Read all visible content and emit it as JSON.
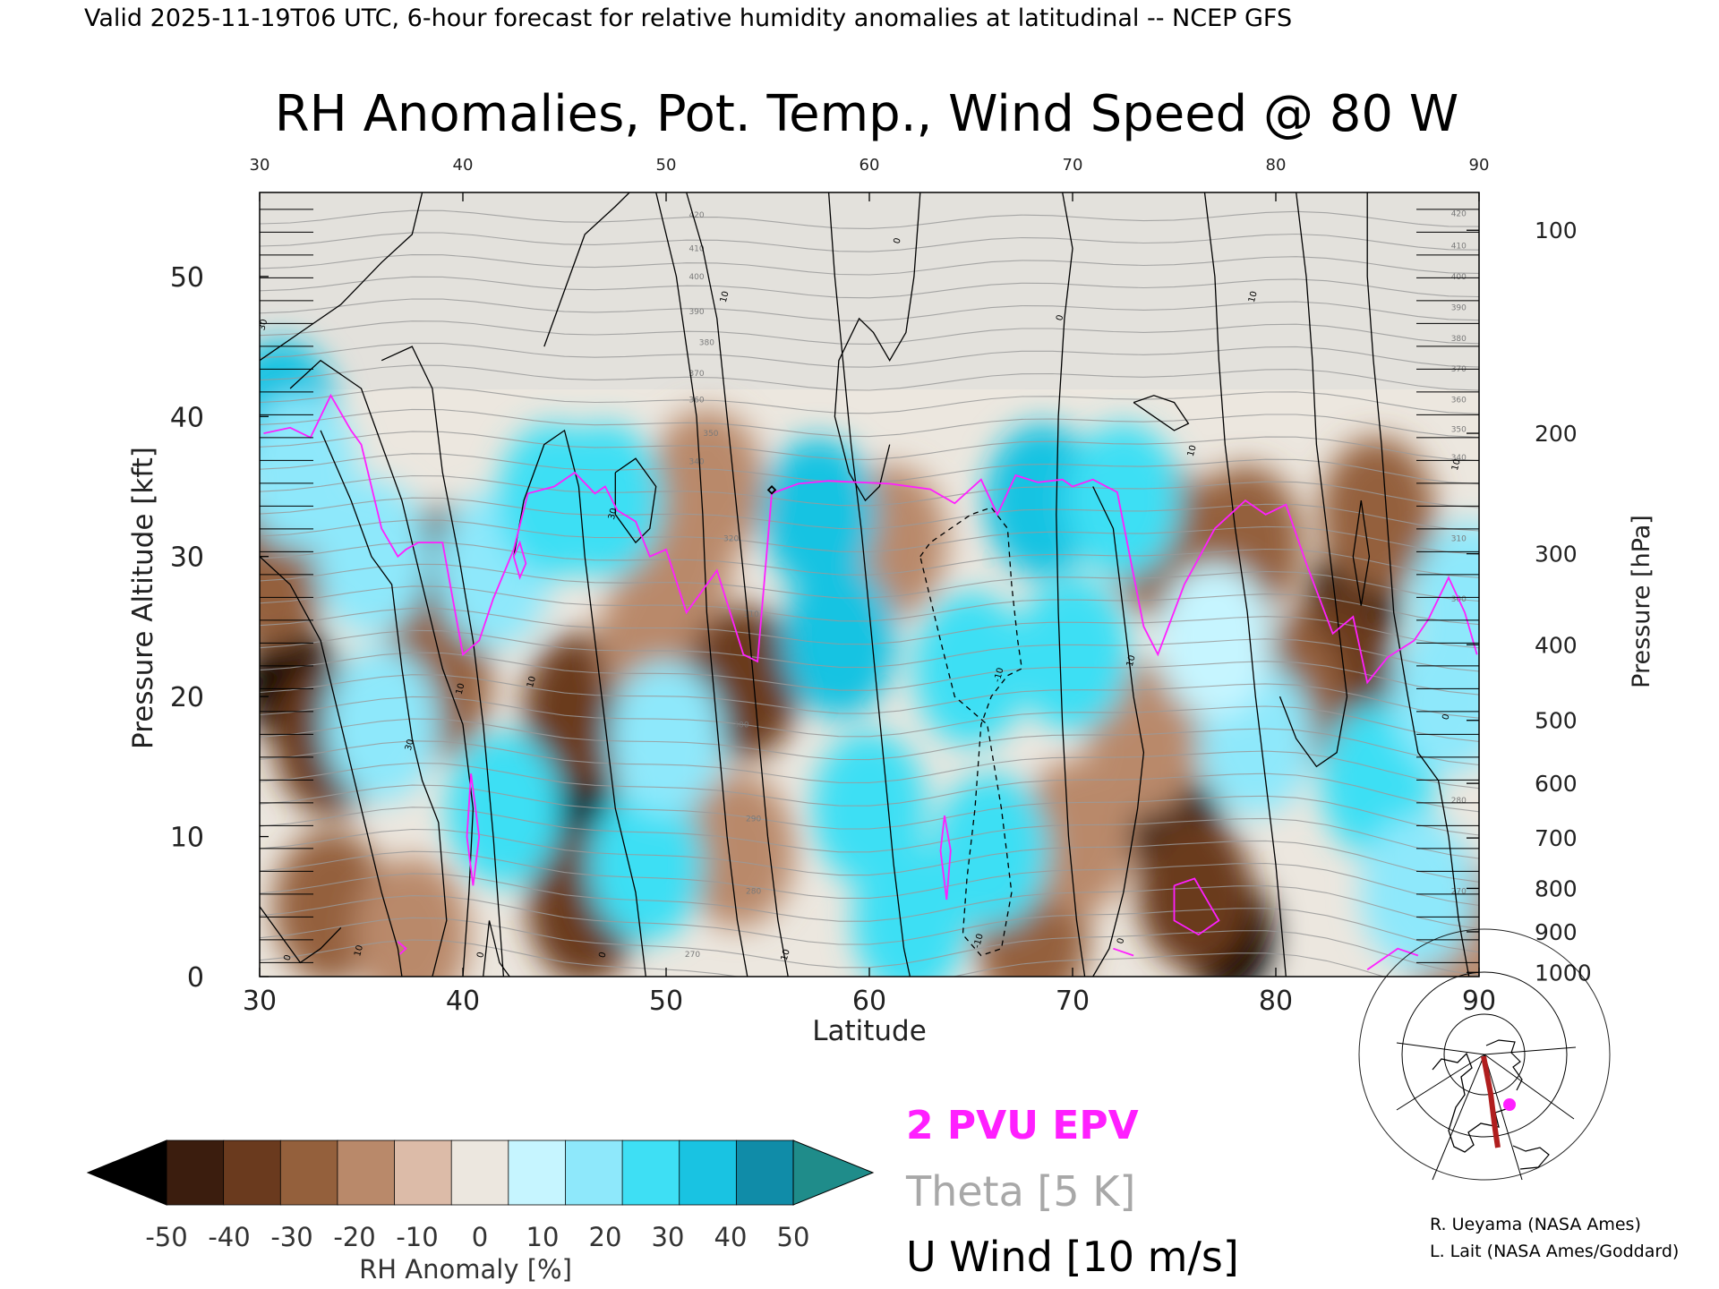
{
  "header": {
    "valid_line": "Valid 2025-11-19T06 UTC, 6-hour forecast for relative humidity anomalies at latitudinal -- NCEP GFS",
    "title": "RH Anomalies, Pot. Temp., Wind Speed @ 80 W"
  },
  "chart_data": {
    "type": "heatmap",
    "title": "RH Anomalies, Pot. Temp., Wind Speed @ 80 W",
    "xlabel": "Latitude",
    "ylabel_left": "Pressure Altitude [kft]",
    "ylabel_right": "Pressure [hPa]",
    "xlim": [
      30,
      90
    ],
    "ylim_kft": [
      0,
      56
    ],
    "x_ticks": [
      "30",
      "40",
      "50",
      "60",
      "70",
      "80",
      "90"
    ],
    "x_ticks_top": [
      "30",
      "40",
      "50",
      "60",
      "70",
      "80",
      "90"
    ],
    "y_ticks_left": [
      "0",
      "10",
      "20",
      "30",
      "40",
      "50"
    ],
    "y_ticks_right": [
      {
        "label": "100",
        "kft": 53.3
      },
      {
        "label": "200",
        "kft": 38.8
      },
      {
        "label": "300",
        "kft": 30.2
      },
      {
        "label": "400",
        "kft": 23.7
      },
      {
        "label": "500",
        "kft": 18.3
      },
      {
        "label": "600",
        "kft": 13.8
      },
      {
        "label": "700",
        "kft": 9.9
      },
      {
        "label": "800",
        "kft": 6.3
      },
      {
        "label": "900",
        "kft": 3.2
      },
      {
        "label": "1000",
        "kft": 0.3
      }
    ],
    "theta_labels": [
      {
        "label": "420",
        "lat": 51.5,
        "kft": 54.2
      },
      {
        "label": "410",
        "lat": 51.5,
        "kft": 51.8
      },
      {
        "label": "400",
        "lat": 51.5,
        "kft": 49.8
      },
      {
        "label": "390",
        "lat": 51.5,
        "kft": 47.3
      },
      {
        "label": "380",
        "lat": 52.0,
        "kft": 45.1
      },
      {
        "label": "370",
        "lat": 51.5,
        "kft": 42.9
      },
      {
        "label": "360",
        "lat": 51.5,
        "kft": 41.0
      },
      {
        "label": "350",
        "lat": 52.2,
        "kft": 38.6
      },
      {
        "label": "340",
        "lat": 51.5,
        "kft": 36.6
      },
      {
        "label": "320",
        "lat": 53.2,
        "kft": 31.1
      },
      {
        "label": "310",
        "lat": 54.2,
        "kft": 25.7
      },
      {
        "label": "300",
        "lat": 53.7,
        "kft": 17.8
      },
      {
        "label": "290",
        "lat": 54.3,
        "kft": 11.1
      },
      {
        "label": "280",
        "lat": 54.3,
        "kft": 5.9
      },
      {
        "label": "270",
        "lat": 51.3,
        "kft": 1.4
      },
      {
        "label": "420",
        "lat": 89.0,
        "kft": 54.3
      },
      {
        "label": "410",
        "lat": 89.0,
        "kft": 52.0
      },
      {
        "label": "400",
        "lat": 89.0,
        "kft": 49.8
      },
      {
        "label": "390",
        "lat": 89.0,
        "kft": 47.6
      },
      {
        "label": "380",
        "lat": 89.0,
        "kft": 45.4
      },
      {
        "label": "370",
        "lat": 89.0,
        "kft": 43.2
      },
      {
        "label": "360",
        "lat": 89.0,
        "kft": 41.0
      },
      {
        "label": "350",
        "lat": 89.0,
        "kft": 38.9
      },
      {
        "label": "340",
        "lat": 89.0,
        "kft": 36.9
      },
      {
        "label": "310",
        "lat": 89.0,
        "kft": 31.1
      },
      {
        "label": "300",
        "lat": 89.0,
        "kft": 26.8
      },
      {
        "label": "280",
        "lat": 89.0,
        "kft": 12.4
      },
      {
        "label": "270",
        "lat": 89.0,
        "kft": 5.9
      }
    ],
    "uwind_labels": [
      {
        "label": "0",
        "lat": 61.5,
        "kft": 52.5
      },
      {
        "label": "0",
        "lat": 69.5,
        "kft": 47.0
      },
      {
        "label": "10",
        "lat": 53.0,
        "kft": 48.5
      },
      {
        "label": "10",
        "lat": 79.0,
        "kft": 48.5
      },
      {
        "label": "30",
        "lat": 30.3,
        "kft": 46.5
      },
      {
        "label": "10",
        "lat": 76.0,
        "kft": 37.5
      },
      {
        "label": "10",
        "lat": 89.0,
        "kft": 36.5
      },
      {
        "label": "30",
        "lat": 47.5,
        "kft": 33.0
      },
      {
        "label": "-10",
        "lat": 66.5,
        "kft": 21.5
      },
      {
        "label": "10",
        "lat": 73.0,
        "kft": 22.5
      },
      {
        "label": "10",
        "lat": 40.0,
        "kft": 20.5
      },
      {
        "label": "10",
        "lat": 43.5,
        "kft": 21.0
      },
      {
        "label": "30",
        "lat": 37.5,
        "kft": 16.5
      },
      {
        "label": "10",
        "lat": 35.0,
        "kft": 1.8
      },
      {
        "label": "0",
        "lat": 31.5,
        "kft": 1.3
      },
      {
        "label": "0",
        "lat": 41.0,
        "kft": 1.5
      },
      {
        "label": "0",
        "lat": 47.0,
        "kft": 1.5
      },
      {
        "label": "10",
        "lat": 56.0,
        "kft": 1.5
      },
      {
        "label": "-10",
        "lat": 65.5,
        "kft": 2.5
      },
      {
        "label": "0",
        "lat": 72.5,
        "kft": 2.5
      },
      {
        "label": "0",
        "lat": 88.5,
        "kft": 18.5
      }
    ],
    "rh_anomaly_blobs": [
      {
        "lat": 31.5,
        "kft": 21,
        "value": -55
      },
      {
        "lat": 33.5,
        "kft": 17,
        "value": -35
      },
      {
        "lat": 30.5,
        "kft": 29,
        "value": -25
      },
      {
        "lat": 33.5,
        "kft": 5,
        "value": -30
      },
      {
        "lat": 37.5,
        "kft": 3,
        "value": -20
      },
      {
        "lat": 39,
        "kft": 28,
        "value": -35
      },
      {
        "lat": 38.6,
        "kft": 21,
        "value": -30
      },
      {
        "lat": 45.3,
        "kft": 12,
        "value": -55
      },
      {
        "lat": 45.8,
        "kft": 19,
        "value": -35
      },
      {
        "lat": 46,
        "kft": 5,
        "value": -40
      },
      {
        "lat": 49.5,
        "kft": 24,
        "value": -20
      },
      {
        "lat": 50.5,
        "kft": 30,
        "value": -15
      },
      {
        "lat": 53.8,
        "kft": 21,
        "value": -40
      },
      {
        "lat": 53.5,
        "kft": 9,
        "value": -20
      },
      {
        "lat": 52,
        "kft": 35,
        "value": -15
      },
      {
        "lat": 61,
        "kft": 31,
        "value": -15
      },
      {
        "lat": 68,
        "kft": 3,
        "value": -25
      },
      {
        "lat": 70.2,
        "kft": 10,
        "value": -20
      },
      {
        "lat": 75.2,
        "kft": 10,
        "value": -55
      },
      {
        "lat": 77.6,
        "kft": 3,
        "value": -55
      },
      {
        "lat": 76,
        "kft": 6,
        "value": -40
      },
      {
        "lat": 74.5,
        "kft": 31,
        "value": -30
      },
      {
        "lat": 73.5,
        "kft": 17,
        "value": -20
      },
      {
        "lat": 78.5,
        "kft": 31,
        "value": -25
      },
      {
        "lat": 83.8,
        "kft": 26.5,
        "value": -55
      },
      {
        "lat": 83,
        "kft": 22,
        "value": -35
      },
      {
        "lat": 80.5,
        "kft": 20,
        "value": -25
      },
      {
        "lat": 89,
        "kft": 3,
        "value": -20
      },
      {
        "lat": 85,
        "kft": 33,
        "value": -25
      },
      {
        "lat": 31,
        "kft": 40,
        "value": 45
      },
      {
        "lat": 32,
        "kft": 36,
        "value": 25
      },
      {
        "lat": 35.5,
        "kft": 30,
        "value": 20
      },
      {
        "lat": 36,
        "kft": 18,
        "value": 25
      },
      {
        "lat": 41.5,
        "kft": 29,
        "value": 25
      },
      {
        "lat": 42,
        "kft": 12,
        "value": 30
      },
      {
        "lat": 44.5,
        "kft": 34,
        "value": 30
      },
      {
        "lat": 47,
        "kft": 34,
        "value": 35
      },
      {
        "lat": 49,
        "kft": 8,
        "value": 30
      },
      {
        "lat": 50,
        "kft": 17,
        "value": 25
      },
      {
        "lat": 57.5,
        "kft": 33,
        "value": 40
      },
      {
        "lat": 58.5,
        "kft": 24,
        "value": 40
      },
      {
        "lat": 60,
        "kft": 12,
        "value": 35
      },
      {
        "lat": 62,
        "kft": 4,
        "value": 35
      },
      {
        "lat": 65,
        "kft": 22,
        "value": 35
      },
      {
        "lat": 66,
        "kft": 9,
        "value": 30
      },
      {
        "lat": 68.5,
        "kft": 34,
        "value": 40
      },
      {
        "lat": 70,
        "kft": 23,
        "value": 35
      },
      {
        "lat": 72.5,
        "kft": 34,
        "value": 30
      },
      {
        "lat": 79,
        "kft": 17,
        "value": 20
      },
      {
        "lat": 85,
        "kft": 14,
        "value": 30
      },
      {
        "lat": 87,
        "kft": 6,
        "value": 25
      },
      {
        "lat": 88.5,
        "kft": 20,
        "value": 20
      },
      {
        "lat": 89.5,
        "kft": 27,
        "value": 25
      },
      {
        "lat": 77,
        "kft": 24,
        "value": 15
      }
    ],
    "epv_2pvu_line": [
      [
        30.2,
        38.8
      ],
      [
        31.5,
        39.2
      ],
      [
        32.5,
        38.5
      ],
      [
        33.5,
        41.5
      ],
      [
        34.5,
        39
      ],
      [
        35,
        38
      ],
      [
        36,
        32
      ],
      [
        36.8,
        30
      ],
      [
        37.2,
        30.5
      ],
      [
        37.8,
        31
      ],
      [
        39,
        31
      ],
      [
        40,
        23
      ],
      [
        40.8,
        24
      ],
      [
        41.5,
        27
      ],
      [
        42.5,
        30.5
      ],
      [
        43.2,
        34.5
      ],
      [
        44.5,
        35
      ],
      [
        45.5,
        36
      ],
      [
        46.5,
        34.5
      ],
      [
        47,
        35
      ],
      [
        47.6,
        33.3
      ],
      [
        48.5,
        32.5
      ],
      [
        49.2,
        30
      ],
      [
        50,
        30.5
      ],
      [
        51,
        26
      ],
      [
        52.5,
        29
      ],
      [
        53.8,
        23
      ],
      [
        54.5,
        22.5
      ],
      [
        55.2,
        34.5
      ],
      [
        56.5,
        35.2
      ],
      [
        58,
        35.4
      ],
      [
        61,
        35.2
      ],
      [
        63,
        34.8
      ],
      [
        64.2,
        33.8
      ],
      [
        65.5,
        35.5
      ],
      [
        66.3,
        33
      ],
      [
        67.2,
        35.8
      ],
      [
        68.3,
        35.3
      ],
      [
        69.5,
        35.5
      ],
      [
        70,
        35
      ],
      [
        71,
        35.5
      ],
      [
        72.2,
        34.6
      ],
      [
        73.5,
        25
      ],
      [
        74.2,
        23
      ],
      [
        75.5,
        28
      ],
      [
        77,
        32
      ],
      [
        78.5,
        34
      ],
      [
        79.5,
        33
      ],
      [
        80.5,
        33.7
      ],
      [
        81.5,
        29.5
      ],
      [
        82.8,
        24.5
      ],
      [
        83.8,
        25.7
      ],
      [
        84.5,
        21
      ],
      [
        85.5,
        22.8
      ],
      [
        86.8,
        24
      ],
      [
        87.5,
        25.5
      ],
      [
        88.5,
        28.5
      ],
      [
        89.3,
        26
      ],
      [
        89.9,
        23
      ]
    ],
    "epv_2pvu_small": [
      [
        [
          42.5,
          30
        ],
        [
          42.8,
          31
        ],
        [
          43.1,
          29.5
        ],
        [
          42.8,
          28.5
        ],
        [
          42.5,
          30
        ]
      ],
      [
        [
          40.4,
          14.5
        ],
        [
          40.8,
          10
        ],
        [
          40.5,
          6.5
        ],
        [
          40.2,
          10
        ],
        [
          40.4,
          14.5
        ]
      ],
      [
        [
          36.8,
          2.5
        ],
        [
          37.2,
          2
        ],
        [
          36.9,
          1.6
        ]
      ],
      [
        [
          63.7,
          11.5
        ],
        [
          64,
          9
        ],
        [
          63.8,
          5.5
        ],
        [
          63.5,
          9
        ],
        [
          63.7,
          11.5
        ]
      ],
      [
        [
          75,
          6.5
        ],
        [
          76,
          7
        ],
        [
          77.2,
          4
        ],
        [
          76.2,
          3
        ],
        [
          75,
          4
        ],
        [
          75,
          6.5
        ]
      ],
      [
        [
          72,
          2
        ],
        [
          73,
          1.5
        ]
      ],
      [
        [
          84.5,
          0.5
        ],
        [
          86,
          2
        ],
        [
          87,
          1.5
        ]
      ]
    ],
    "legend": {
      "colorbar_label": "RH Anomaly [%]",
      "colorbar_ticks": [
        "-50",
        "-40",
        "-30",
        "-20",
        "-10",
        "0",
        "10",
        "20",
        "30",
        "40",
        "50"
      ],
      "colorbar_colors": [
        "#3b1d0e",
        "#6a3a1e",
        "#94603c",
        "#b9896a",
        "#dcbba8",
        "#ece7df",
        "#c6f5ff",
        "#8ee8fb",
        "#3edff4",
        "#19c3e2",
        "#108ca8"
      ],
      "colorbar_under": "#000000",
      "colorbar_over": "#1f8c8a",
      "line_epv": "2 PVU EPV",
      "line_theta": "Theta [5 K]",
      "line_uwind": "U Wind [10 m/s]"
    },
    "colors": {
      "epv": "#ff1fff",
      "theta": "#9a9a9a",
      "uwind": "#000000",
      "stratosphere": "#e3e1dc",
      "transect_line": "#b01e1e",
      "transect_dot": "#ff1fff"
    }
  },
  "inset_map": {
    "icon": "globe-map-icon"
  },
  "credits": {
    "line1": "R. Ueyama (NASA Ames)",
    "line2": "L. Lait (NASA Ames/Goddard)"
  }
}
